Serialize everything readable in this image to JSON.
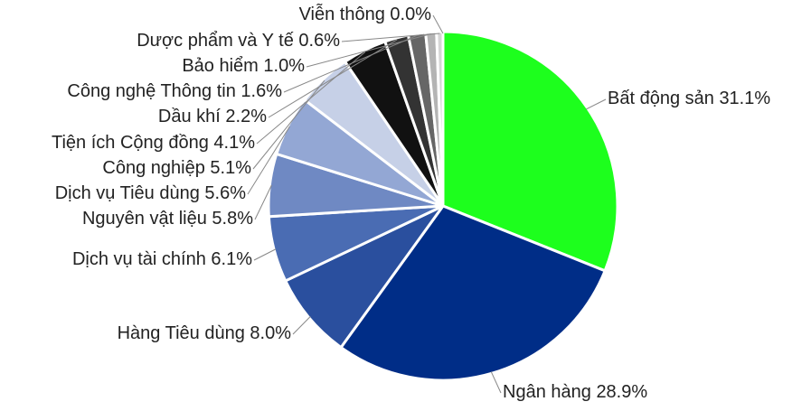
{
  "chart_data": {
    "type": "pie",
    "categories": [
      "Bất động sản",
      "Ngân hàng",
      "Hàng Tiêu dùng",
      "Dịch vụ tài chính",
      "Nguyên vật liệu",
      "Dịch vụ Tiêu dùng",
      "Công nghiệp",
      "Tiện ích Cộng đồng",
      "Dầu khí",
      "Công nghệ Thông tin",
      "Bảo hiểm",
      "Dược phẩm và Y tế",
      "Viễn thông"
    ],
    "values": [
      31.1,
      28.9,
      8.0,
      6.1,
      5.8,
      5.6,
      5.1,
      4.1,
      2.2,
      1.6,
      1.0,
      0.6,
      0.0
    ],
    "value_labels": [
      "31.1%",
      "28.9%",
      "8.0%",
      "6.1%",
      "5.8%",
      "5.6%",
      "5.1%",
      "4.1%",
      "2.2%",
      "1.6%",
      "1.0%",
      "0.6%",
      "0.0%"
    ],
    "colors": [
      "#1dff1d",
      "#002d87",
      "#2a4f9e",
      "#4a6cb3",
      "#6f89c3",
      "#93a7d4",
      "#c6d0e7",
      "#111111",
      "#333333",
      "#666666",
      "#b4b4b4",
      "#d6d6d6",
      "#eeeeee"
    ]
  }
}
